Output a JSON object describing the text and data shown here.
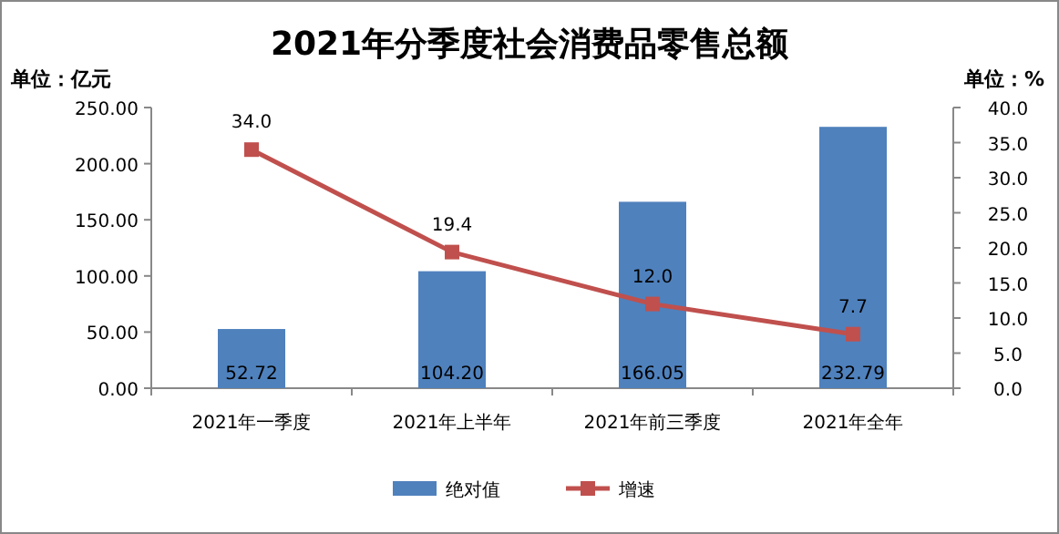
{
  "chart_data": {
    "type": "bar",
    "title": "2021年分季度社会消费品零售总额",
    "ylabel": "单位：亿元",
    "y2label": "单位：%",
    "categories": [
      "2021年一季度",
      "2021年上半年",
      "2021年前三季度",
      "2021年全年"
    ],
    "series": [
      {
        "name": "绝对值",
        "color": "#4f81bd",
        "values": [
          52.72,
          104.2,
          166.05,
          232.79
        ],
        "value_labels": [
          "52.72",
          "104.20",
          "166.05",
          "232.79"
        ]
      },
      {
        "name": "增速",
        "type": "line",
        "axis": "y2",
        "color": "#c0504d",
        "marker": "square",
        "values": [
          34.0,
          19.4,
          12.0,
          7.7
        ],
        "value_labels": [
          "34.0",
          "19.4",
          "12.0",
          "7.7"
        ]
      }
    ],
    "ylim": [
      0,
      250
    ],
    "yticks": [
      {
        "value": 0,
        "label": "0.00"
      },
      {
        "value": 50,
        "label": "50.00"
      },
      {
        "value": 100,
        "label": "100.00"
      },
      {
        "value": 150,
        "label": "150.00"
      },
      {
        "value": 200,
        "label": "200.00"
      },
      {
        "value": 250,
        "label": "250.00"
      }
    ],
    "y2lim": [
      0,
      40
    ],
    "y2ticks": [
      {
        "value": 0,
        "label": "0.0"
      },
      {
        "value": 5,
        "label": "5.0"
      },
      {
        "value": 10,
        "label": "10.0"
      },
      {
        "value": 15,
        "label": "15.0"
      },
      {
        "value": 20,
        "label": "20.0"
      },
      {
        "value": 25,
        "label": "25.0"
      },
      {
        "value": 30,
        "label": "30.0"
      },
      {
        "value": 35,
        "label": "35.0"
      },
      {
        "value": 40,
        "label": "40.0"
      }
    ],
    "legend": "bottom"
  }
}
